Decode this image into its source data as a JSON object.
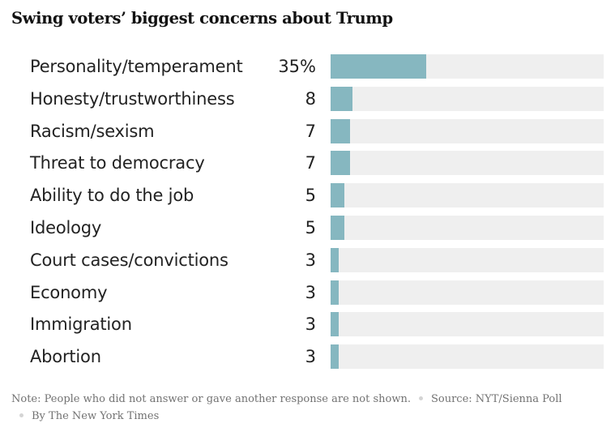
{
  "chart_data": {
    "type": "bar",
    "orientation": "horizontal",
    "title": "Swing voters’ biggest concerns about Trump",
    "categories": [
      "Personality/temperament",
      "Honesty/trustworthiness",
      "Racism/sexism",
      "Threat to democracy",
      "Ability to do the job",
      "Ideology",
      "Court cases/convictions",
      "Economy",
      "Immigration",
      "Abortion"
    ],
    "values": [
      35,
      8,
      7,
      7,
      5,
      5,
      3,
      3,
      3,
      3
    ],
    "value_labels": [
      "35%",
      "8",
      "7",
      "7",
      "5",
      "5",
      "3",
      "3",
      "3",
      "3"
    ],
    "xlim": [
      0,
      100
    ],
    "bar_color": "#86b7c0",
    "track_color": "#efefef"
  },
  "footer": {
    "note": "Note: People who did not answer or gave another response are not shown.",
    "source": "Source: NYT/Sienna Poll",
    "byline": "By The New York Times"
  }
}
